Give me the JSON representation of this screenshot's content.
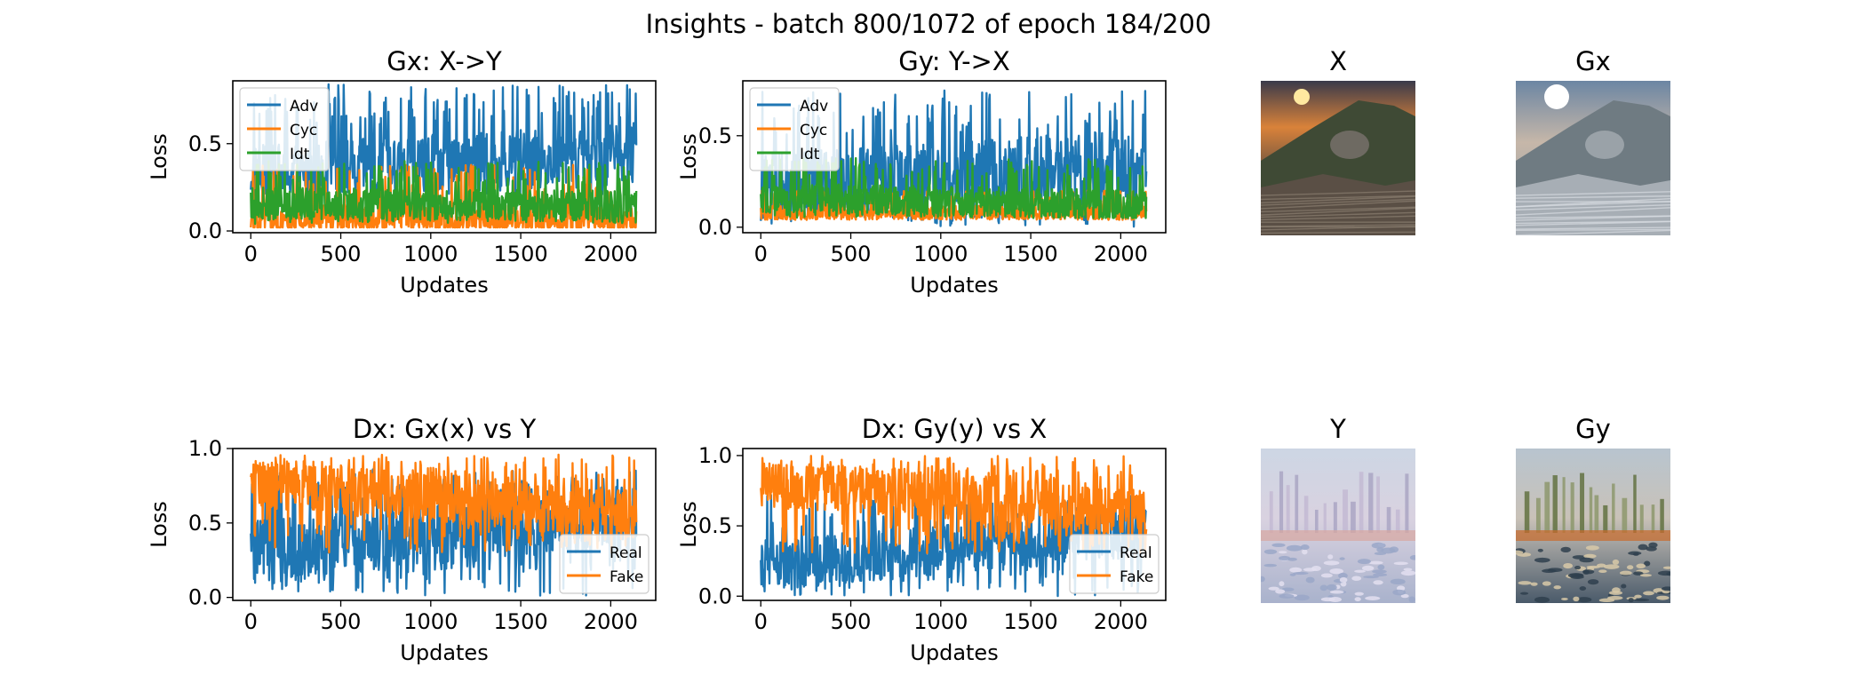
{
  "suptitle": "Insights - batch 800/1072 of epoch 184/200",
  "colors": {
    "blue": "#1f77b4",
    "orange": "#ff7f0e",
    "green": "#2ca02c"
  },
  "chart_data": [
    {
      "id": "gx",
      "type": "line",
      "title": "Gx: X->Y",
      "xlabel": "Updates",
      "ylabel": "Loss",
      "xticks": [
        0,
        500,
        1000,
        1500,
        2000
      ],
      "yticks": [
        0.0,
        0.5
      ],
      "ytick_labels": [
        "0.0",
        "0.5"
      ],
      "xlim": [
        -100,
        2250
      ],
      "ylim": [
        -0.01,
        0.86
      ],
      "x_count": 2144,
      "legend": "upper-left",
      "series": [
        {
          "name": "Adv",
          "color": "blue",
          "low": 0.2,
          "high": 0.84,
          "mean_start": 0.33,
          "mean_end": 0.46
        },
        {
          "name": "Cyc",
          "color": "orange",
          "low": 0.02,
          "high": 0.38,
          "mean_start": 0.07,
          "mean_end": 0.06
        },
        {
          "name": "Idt",
          "color": "green",
          "low": 0.04,
          "high": 0.4,
          "mean_start": 0.16,
          "mean_end": 0.14
        }
      ]
    },
    {
      "id": "gy",
      "type": "line",
      "title": "Gy: Y->X",
      "xlabel": "Updates",
      "ylabel": "Loss",
      "xticks": [
        0,
        500,
        1000,
        1500,
        2000
      ],
      "yticks": [
        0.0,
        0.5
      ],
      "ytick_labels": [
        "0.0",
        "0.5"
      ],
      "xlim": [
        -100,
        2250
      ],
      "ylim": [
        -0.03,
        0.8
      ],
      "x_count": 2144,
      "legend": "upper-left",
      "series": [
        {
          "name": "Adv",
          "color": "blue",
          "low": 0.0,
          "high": 0.75,
          "mean_start": 0.22,
          "mean_end": 0.35
        },
        {
          "name": "Cyc",
          "color": "orange",
          "low": 0.04,
          "high": 0.2,
          "mean_start": 0.08,
          "mean_end": 0.08
        },
        {
          "name": "Idt",
          "color": "green",
          "low": 0.05,
          "high": 0.38,
          "mean_start": 0.16,
          "mean_end": 0.12
        }
      ]
    },
    {
      "id": "dx1",
      "type": "line",
      "title": "Dx: Gx(x) vs Y",
      "xlabel": "Updates",
      "ylabel": "Loss",
      "xticks": [
        0,
        500,
        1000,
        1500,
        2000
      ],
      "yticks": [
        0.0,
        0.5,
        1.0
      ],
      "ytick_labels": [
        "0.0",
        "0.5",
        "1.0"
      ],
      "xlim": [
        -100,
        2250
      ],
      "ylim": [
        -0.02,
        1.0
      ],
      "x_count": 2144,
      "legend": "lower-right",
      "series": [
        {
          "name": "Real",
          "color": "blue",
          "low": 0.01,
          "high": 0.86,
          "mean_start": 0.3,
          "mean_end": 0.55
        },
        {
          "name": "Fake",
          "color": "orange",
          "low": 0.3,
          "high": 0.96,
          "mean_start": 0.77,
          "mean_end": 0.55
        }
      ]
    },
    {
      "id": "dx2",
      "type": "line",
      "title": "Dx: Gy(y) vs X",
      "xlabel": "Updates",
      "ylabel": "Loss",
      "xticks": [
        0,
        500,
        1000,
        1500,
        2000
      ],
      "yticks": [
        0.0,
        0.5,
        1.0
      ],
      "ytick_labels": [
        "0.0",
        "0.5",
        "1.0"
      ],
      "xlim": [
        -100,
        2250
      ],
      "ylim": [
        -0.03,
        1.05
      ],
      "x_count": 2144,
      "legend": "lower-right",
      "series": [
        {
          "name": "Real",
          "color": "blue",
          "low": 0.0,
          "high": 0.72,
          "mean_start": 0.22,
          "mean_end": 0.45
        },
        {
          "name": "Fake",
          "color": "orange",
          "low": 0.3,
          "high": 1.0,
          "mean_start": 0.8,
          "mean_end": 0.6
        }
      ]
    }
  ],
  "images": [
    {
      "id": "img-x",
      "title": "X",
      "scene": "sunset"
    },
    {
      "id": "img-gx",
      "title": "Gx",
      "scene": "sunset-translated"
    },
    {
      "id": "img-y",
      "title": "Y",
      "scene": "painting"
    },
    {
      "id": "img-gy",
      "title": "Gy",
      "scene": "painting-translated"
    }
  ]
}
